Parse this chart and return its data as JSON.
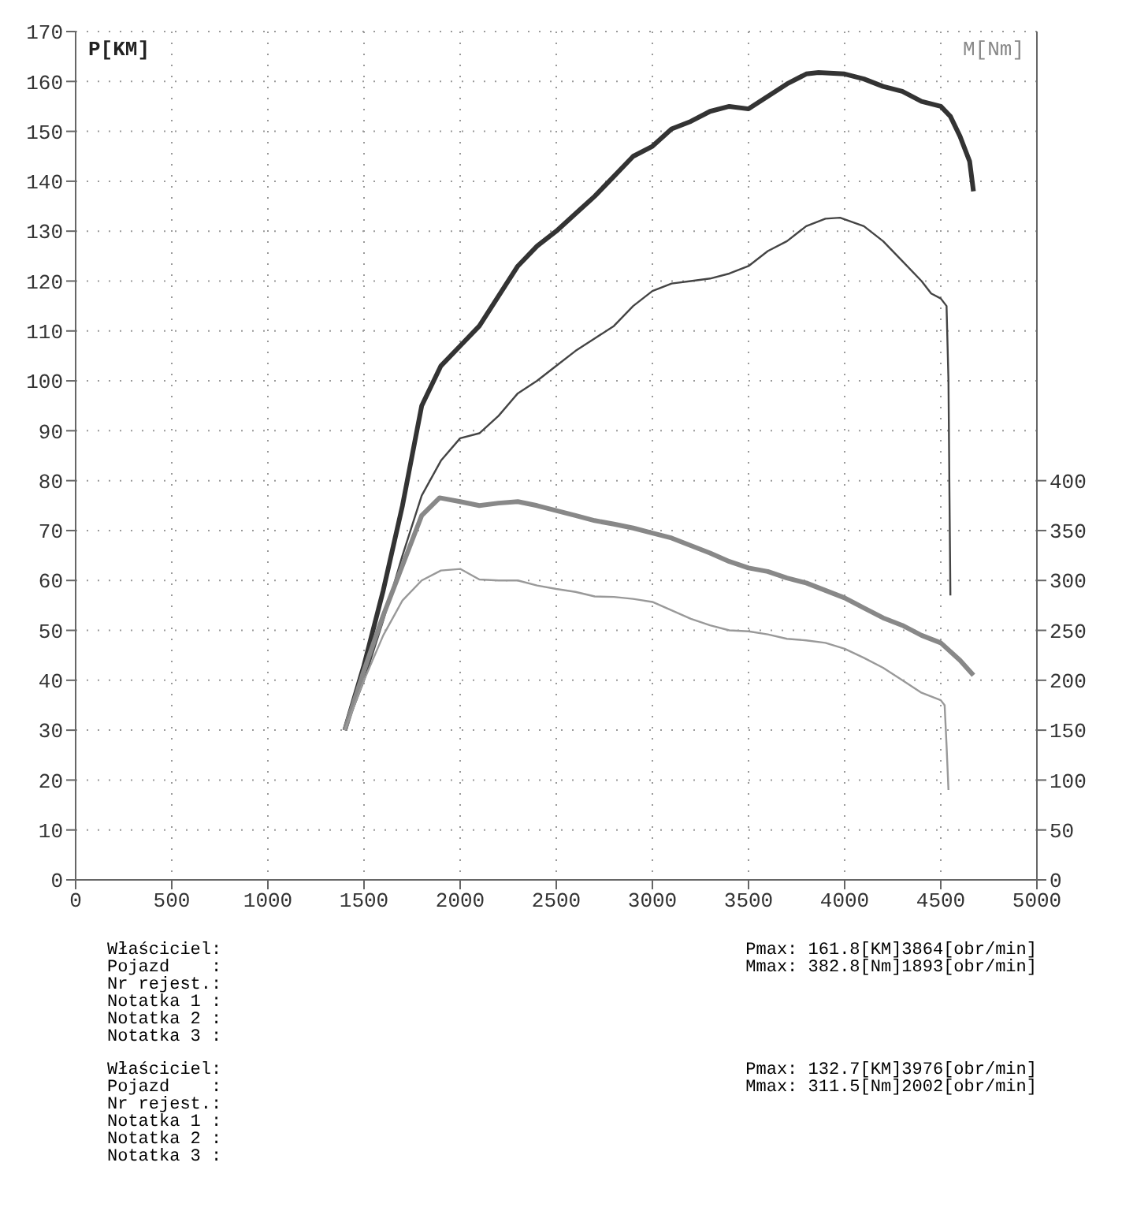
{
  "chart_data": {
    "type": "line",
    "ylabel": "P[KM]",
    "y2label": "M[Nm]",
    "xlim": [
      0,
      5000
    ],
    "xticks": [
      0,
      500,
      1000,
      1500,
      2000,
      2500,
      3000,
      3500,
      4000,
      4500,
      5000
    ],
    "ylim": [
      0,
      170
    ],
    "yticks": [
      0,
      10,
      20,
      30,
      40,
      50,
      60,
      70,
      80,
      90,
      100,
      110,
      120,
      130,
      140,
      150,
      160,
      170
    ],
    "y2lim": [
      0,
      850
    ],
    "y2ticks": [
      0,
      50,
      100,
      150,
      200,
      250,
      300,
      350,
      400
    ],
    "grid": true,
    "line_style": "solid",
    "marker": "none",
    "series": [
      {
        "color": "#333333",
        "x": [
          1400,
          1500,
          1600,
          1700,
          1800,
          1900,
          2000,
          2100,
          2200,
          2300,
          2400,
          2500,
          2600,
          2700,
          2800,
          2900,
          3000,
          3100,
          3200,
          3300,
          3400,
          3500,
          3600,
          3700,
          3800,
          3864,
          4000,
          4100,
          4200,
          4300,
          4400,
          4500,
          4550,
          4600,
          4650,
          4670
        ],
        "values": [
          30,
          43,
          58,
          75,
          95,
          103,
          107,
          111,
          117,
          123,
          127,
          130,
          133.5,
          137,
          141,
          145,
          147,
          150.5,
          152,
          154,
          155,
          154.5,
          157,
          159.5,
          161.5,
          161.8,
          161.5,
          160.5,
          159,
          158,
          156,
          155,
          153,
          149,
          144,
          138
        ]
      },
      {
        "color": "#444444",
        "x": [
          1400,
          1500,
          1600,
          1700,
          1800,
          1900,
          2000,
          2100,
          2200,
          2300,
          2400,
          2500,
          2600,
          2700,
          2800,
          2900,
          3000,
          3100,
          3200,
          3300,
          3400,
          3500,
          3600,
          3700,
          3800,
          3900,
          3976,
          4100,
          4200,
          4300,
          4400,
          4450,
          4500,
          4530,
          4540,
          4545,
          4550
        ],
        "values": [
          30,
          40,
          52,
          65,
          77,
          84,
          88.5,
          89.5,
          93,
          97.5,
          100,
          103,
          106,
          108.5,
          111,
          115,
          118,
          119.5,
          120,
          120.5,
          121.5,
          123,
          126,
          128,
          131,
          132.5,
          132.7,
          131,
          128,
          124,
          120,
          117.5,
          116.5,
          115,
          100,
          78,
          57
        ]
      },
      {
        "color": "#888888",
        "axis": "y2",
        "x": [
          1400,
          1500,
          1600,
          1700,
          1800,
          1893,
          2000,
          2100,
          2200,
          2300,
          2400,
          2500,
          2600,
          2700,
          2800,
          2900,
          3000,
          3100,
          3200,
          3300,
          3400,
          3500,
          3600,
          3700,
          3800,
          3900,
          4000,
          4100,
          4200,
          4300,
          4400,
          4500,
          4600,
          4670
        ],
        "values": [
          150,
          210,
          265,
          315,
          365,
          382.8,
          379,
          375,
          377.5,
          379,
          375,
          370,
          365,
          360,
          356.5,
          352.5,
          347.5,
          342.5,
          335,
          327.5,
          319,
          312.5,
          309,
          302.5,
          297.5,
          290,
          282.5,
          272.5,
          262.5,
          255,
          245,
          237.5,
          220,
          205
        ]
      },
      {
        "color": "#999999",
        "axis": "y2",
        "x": [
          1400,
          1500,
          1600,
          1700,
          1800,
          1900,
          2002,
          2100,
          2200,
          2300,
          2400,
          2500,
          2600,
          2700,
          2800,
          2900,
          3000,
          3100,
          3200,
          3300,
          3400,
          3500,
          3600,
          3700,
          3800,
          3900,
          4000,
          4100,
          4200,
          4300,
          4400,
          4500,
          4520,
          4530,
          4540
        ],
        "values": [
          150,
          200,
          245,
          280,
          300,
          310,
          311.5,
          301,
          300,
          300,
          295,
          291.5,
          288.5,
          284,
          283.5,
          281.5,
          278.5,
          270,
          261.5,
          255,
          250,
          249,
          246,
          241.5,
          240,
          237.5,
          231.5,
          222.5,
          212.5,
          200,
          187.5,
          180,
          175,
          135,
          90
        ]
      }
    ],
    "annotations": [
      "Właściciel:\nPojazd    :\nNr rejest.:\nNotatka 1 :\nNotatka 2 :\nNotatka 3 :",
      "Pmax: 161.8[KM]3864[obr/min]\nMmax: 382.8[Nm]1893[obr/min]",
      "Właściciel:\nPojazd    :\nNr rejest.:\nNotatka 1 :\nNotatka 2 :\nNotatka 3 :",
      "Pmax: 132.7[KM]3976[obr/min]\nMmax: 311.5[Nm]2002[obr/min]"
    ]
  }
}
